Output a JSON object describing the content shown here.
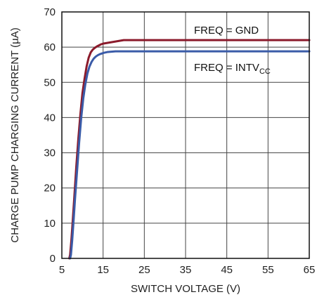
{
  "chart_data": {
    "type": "line",
    "xlabel": "SWITCH VOLTAGE (V)",
    "ylabel": "CHARGE PUMP CHARGING CURRENT (µA)",
    "xlim": [
      5,
      65
    ],
    "ylim": [
      0,
      70
    ],
    "xticks": [
      5,
      15,
      25,
      35,
      45,
      55,
      65
    ],
    "yticks": [
      0,
      10,
      20,
      30,
      40,
      50,
      60,
      70
    ],
    "grid": true,
    "series": [
      {
        "name": "FREQ = GND",
        "label_main": "FREQ = GND",
        "color": "#8B1A2B",
        "x": [
          6.8,
          7.0,
          7.3,
          7.6,
          8.0,
          8.5,
          9.0,
          9.5,
          10.0,
          10.5,
          11.0,
          11.5,
          12.0,
          12.5,
          13.0,
          13.5,
          14.0,
          14.5,
          15.0,
          16.0,
          17.0,
          18.0,
          19.0,
          20.0,
          25.0,
          35.0,
          45.0,
          55.0,
          65.0
        ],
        "y": [
          0,
          1,
          5,
          10,
          17,
          26,
          34,
          41,
          47,
          51,
          54.5,
          57,
          58.5,
          59.3,
          59.8,
          60.2,
          60.5,
          60.8,
          61.0,
          61.2,
          61.4,
          61.6,
          61.8,
          62.0,
          62.0,
          62.0,
          62.0,
          62.0,
          62.0
        ]
      },
      {
        "name": "FREQ = INTVCC",
        "label_main": "FREQ = INTV",
        "label_sub": "CC",
        "color": "#3A5BA8",
        "x": [
          7.0,
          7.2,
          7.5,
          7.8,
          8.2,
          8.7,
          9.2,
          9.7,
          10.2,
          10.7,
          11.2,
          11.7,
          12.2,
          12.7,
          13.2,
          13.7,
          14.2,
          14.7,
          15.2,
          16.0,
          17.0,
          18.0,
          19.0,
          20.0,
          25.0,
          35.0,
          45.0,
          55.0,
          65.0
        ],
        "y": [
          0,
          1,
          5,
          10,
          17,
          25,
          33,
          40,
          45.5,
          49.5,
          52.5,
          54.5,
          55.8,
          56.7,
          57.3,
          57.7,
          58.0,
          58.2,
          58.4,
          58.6,
          58.7,
          58.8,
          58.8,
          58.8,
          58.8,
          58.8,
          58.8,
          58.8,
          58.8
        ]
      }
    ]
  }
}
